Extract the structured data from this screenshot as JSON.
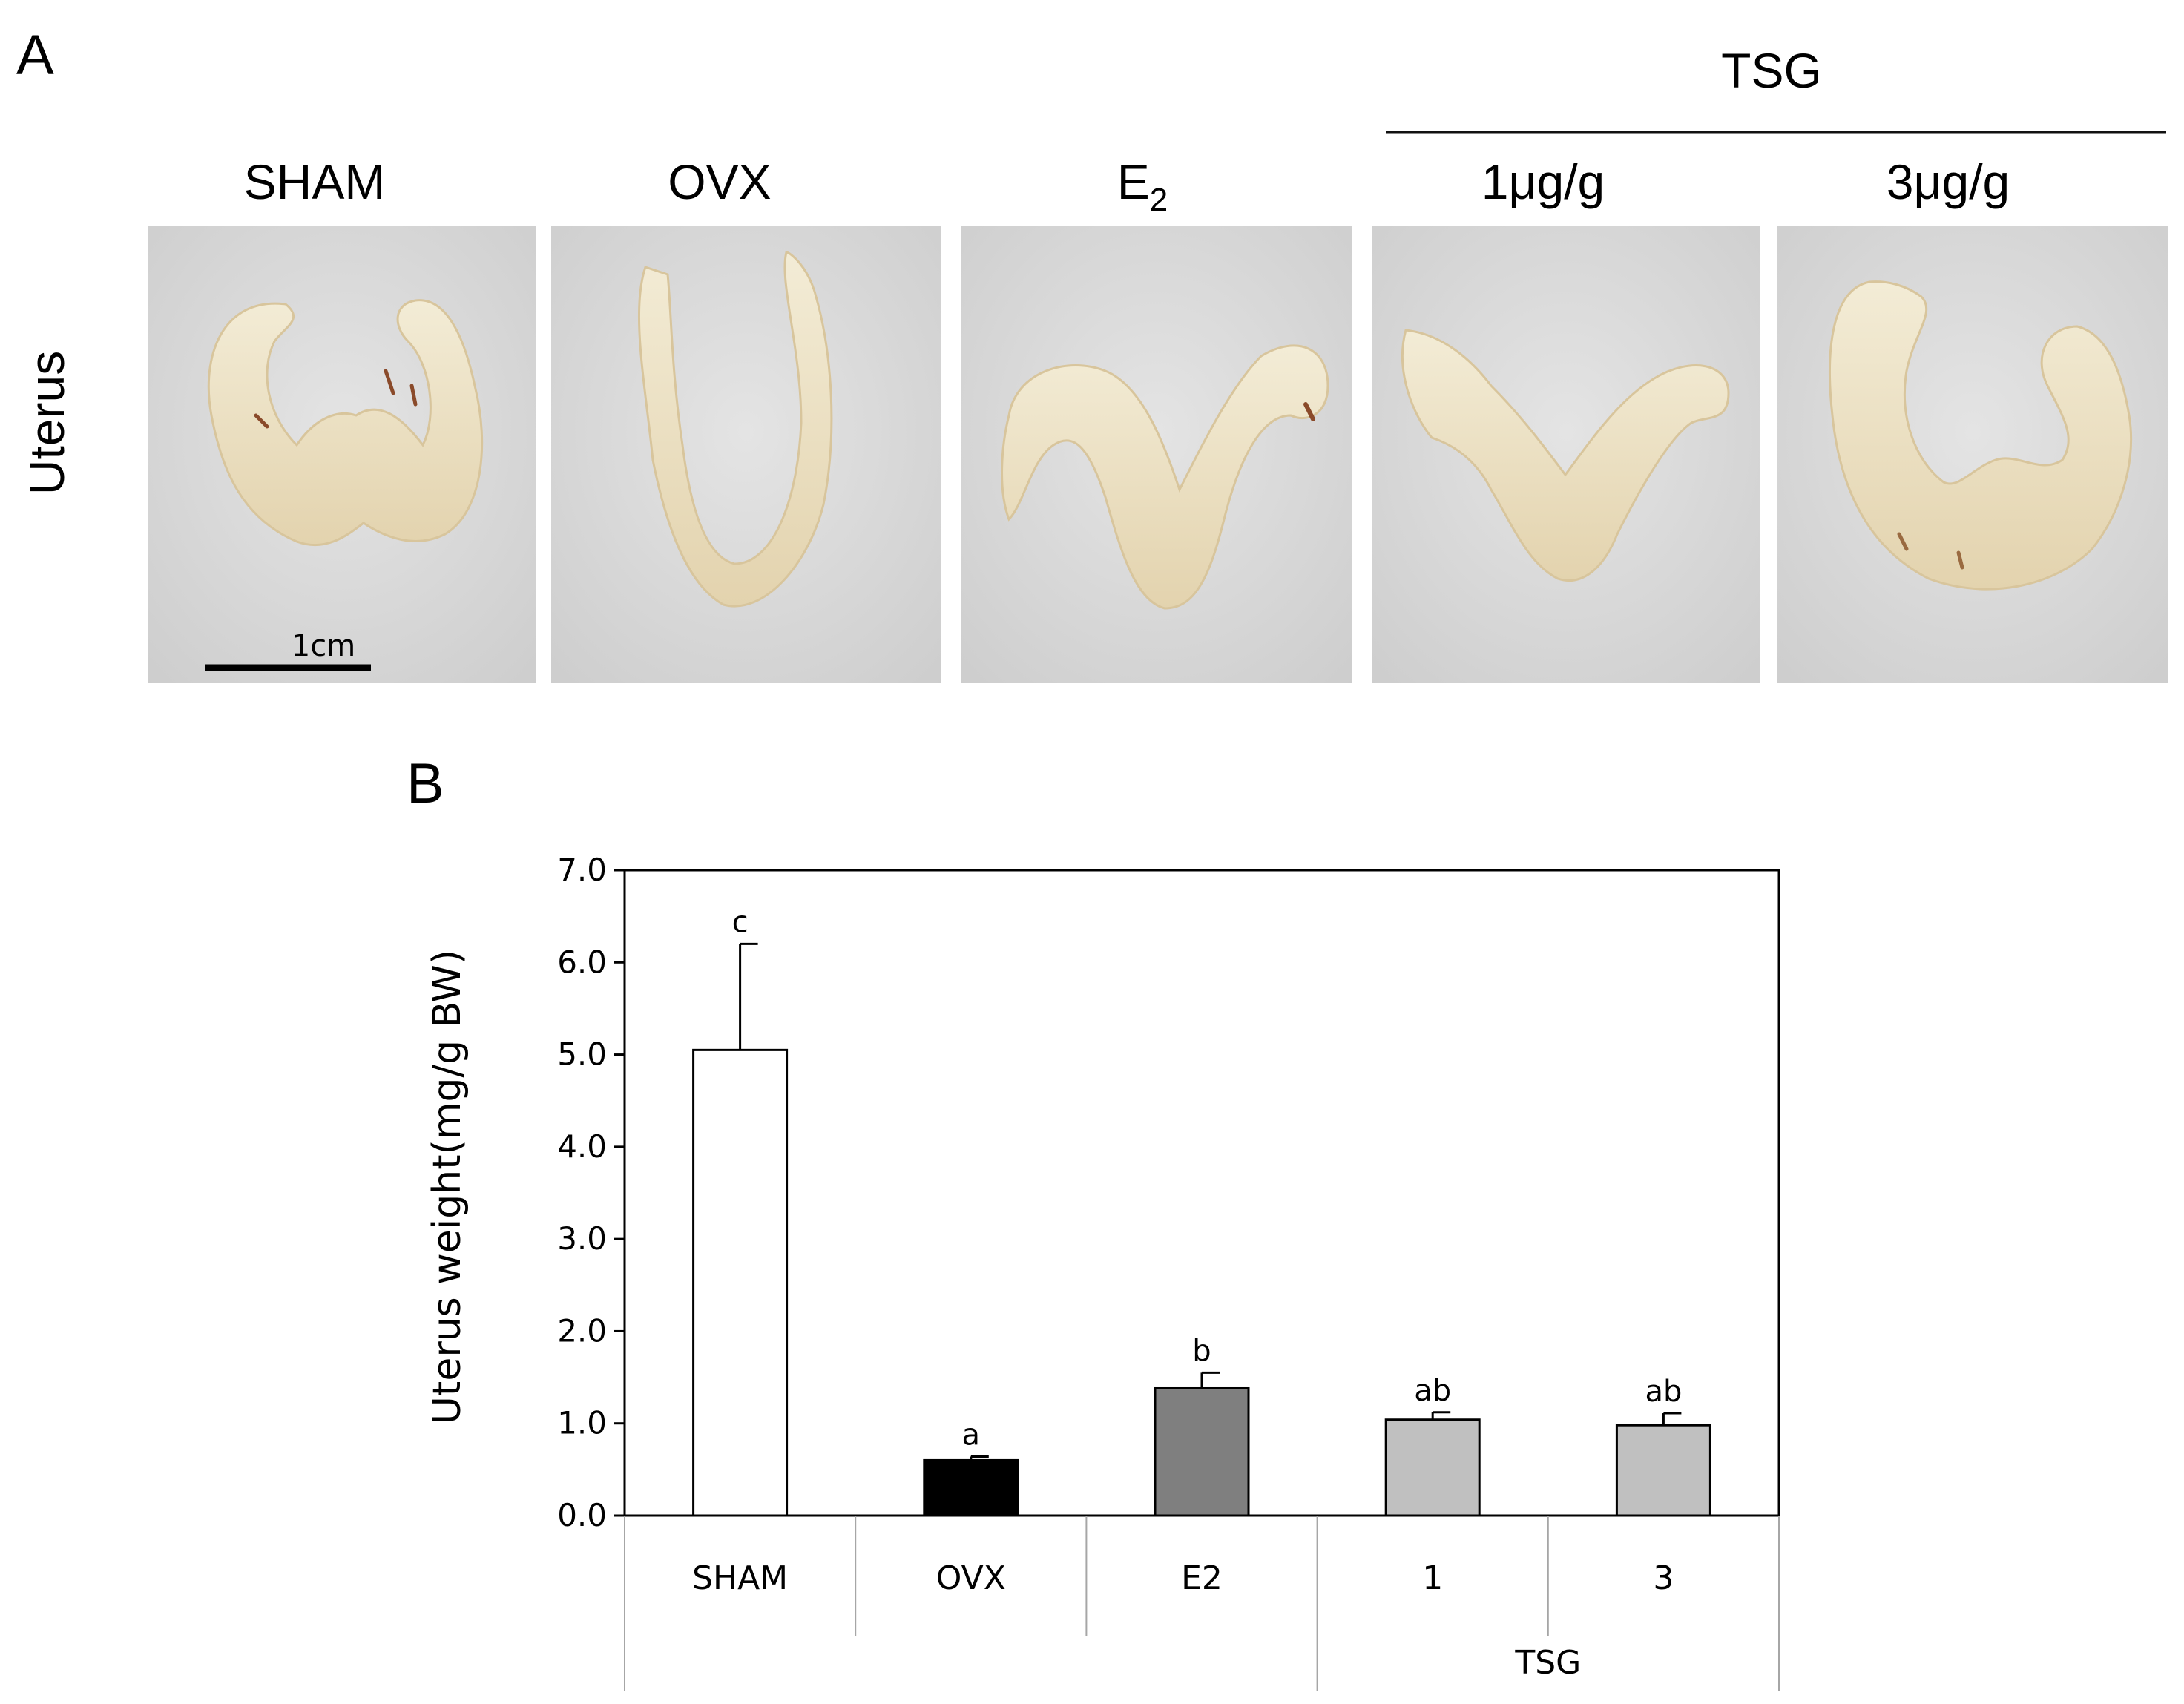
{
  "panel_a": {
    "letter": "A",
    "row_label": "Uterus",
    "group_label": "TSG",
    "column_labels": [
      {
        "main": "SHAM",
        "sub": ""
      },
      {
        "main": "OVX",
        "sub": ""
      },
      {
        "main": "E",
        "sub": "2"
      },
      {
        "main": "1μg/g",
        "sub": ""
      },
      {
        "main": "3μg/g",
        "sub": ""
      }
    ],
    "scale_bar": "1cm",
    "colors": {
      "photo_background": "#dadada",
      "tissue": "#ece3c9",
      "tissue_shade": "#cbb48a"
    }
  },
  "panel_b": {
    "letter": "B",
    "group_label": "TSG"
  },
  "chart_data": {
    "type": "bar",
    "categories": [
      "SHAM",
      "OVX",
      "E2",
      "1",
      "3"
    ],
    "series": [
      {
        "values": [
          5.05,
          0.6,
          1.38,
          1.04,
          0.98
        ],
        "errors": [
          1.15,
          0.04,
          0.17,
          0.08,
          0.13
        ],
        "annotations": [
          "c",
          "a",
          "b",
          "ab",
          "ab"
        ],
        "colors": [
          "#ffffff",
          "#000000",
          "#7f7f7f",
          "#c0c0c0",
          "#c0c0c0"
        ]
      }
    ],
    "title": "",
    "xlabel": "",
    "ylabel": "Uterus weight(mg/g BW)",
    "ylim": [
      0,
      7.0
    ],
    "yticks": [
      "0.0",
      "1.0",
      "2.0",
      "3.0",
      "4.0",
      "5.0",
      "6.0",
      "7.0"
    ],
    "x_group": {
      "label": "TSG",
      "categories": [
        "1",
        "3"
      ]
    },
    "grid": false
  }
}
